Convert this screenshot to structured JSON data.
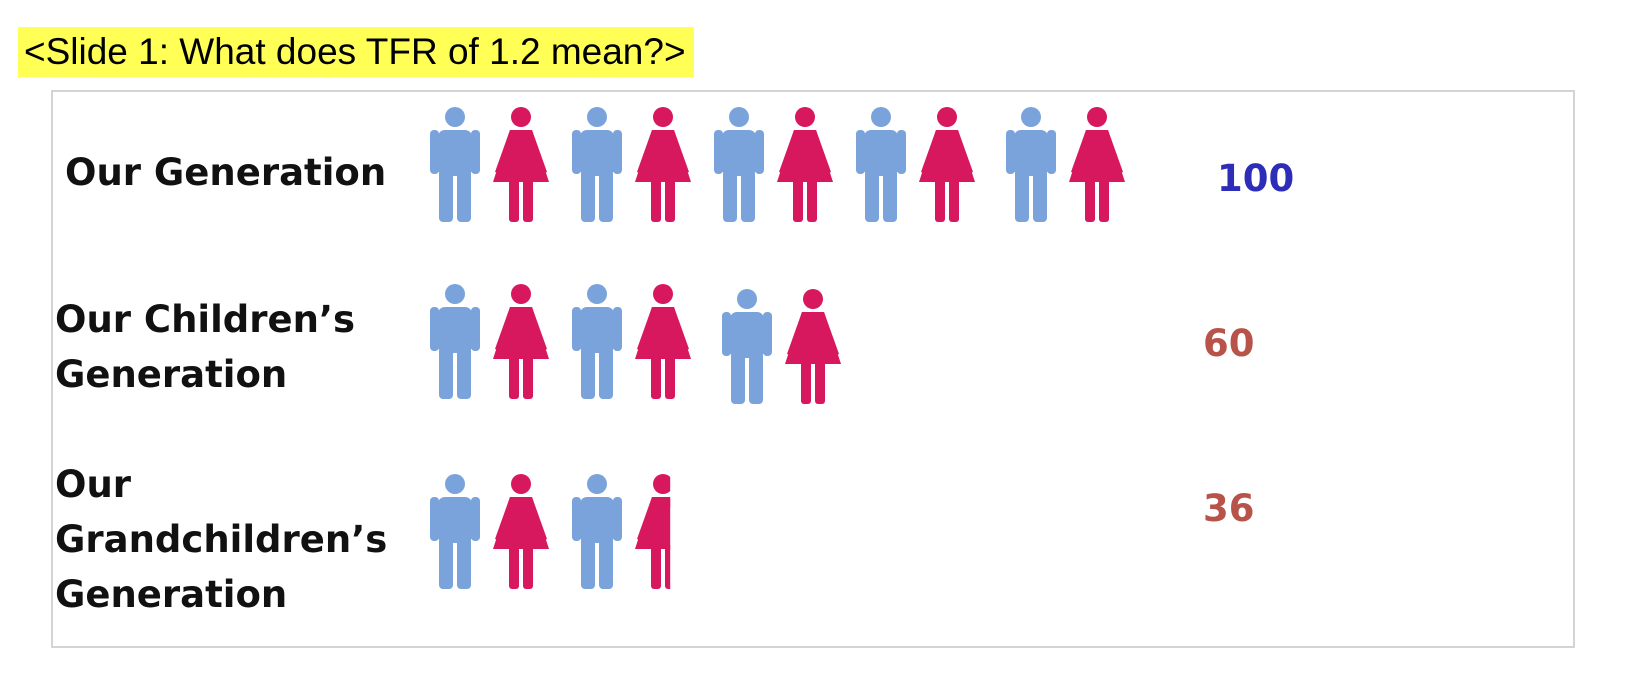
{
  "header": {
    "slide_label": "<Slide 1: What does TFR of 1.2 mean?>",
    "highlight_color": "#ffff55"
  },
  "colors": {
    "male": "#7ba3db",
    "female": "#d8185e",
    "value_first": "#2d2db8",
    "value_other": "#b8534a"
  },
  "chart_data": {
    "type": "pictogram",
    "title": "",
    "unit_note": "",
    "rows": [
      {
        "label_lines": [
          "Our Generation"
        ],
        "value": 100,
        "figures": [
          "male",
          "female",
          "male",
          "female",
          "male",
          "female",
          "male",
          "female",
          "male",
          "female"
        ],
        "partial_last": 1
      },
      {
        "label_lines": [
          "Our Children’s",
          "Generation"
        ],
        "value": 60,
        "figures": [
          "male",
          "female",
          "male",
          "female",
          "male",
          "female"
        ],
        "partial_last": 1
      },
      {
        "label_lines": [
          "Our",
          "Grandchildren’s",
          "Generation"
        ],
        "value": 36,
        "figures": [
          "male",
          "female",
          "male",
          "female"
        ],
        "partial_last": 0.6
      }
    ]
  }
}
